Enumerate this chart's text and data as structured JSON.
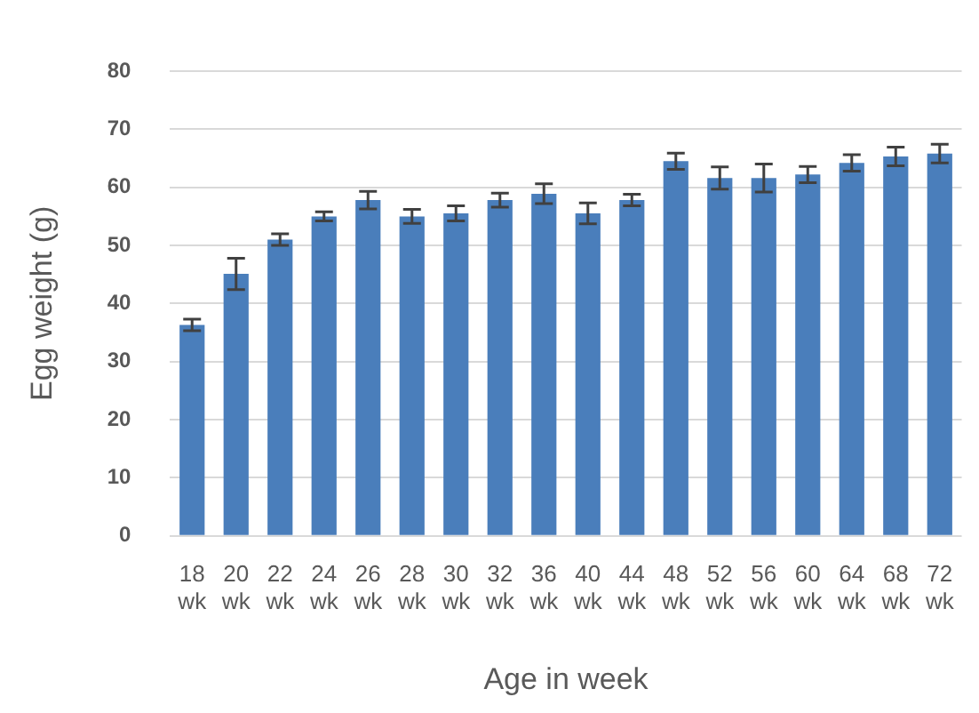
{
  "chart_data": {
    "type": "bar",
    "xlabel": "Age in week",
    "ylabel": "Egg weight (g)",
    "categories": [
      [
        "18",
        "wk"
      ],
      [
        "20",
        "wk"
      ],
      [
        "22",
        "wk"
      ],
      [
        "24",
        "wk"
      ],
      [
        "26",
        "wk"
      ],
      [
        "28",
        "wk"
      ],
      [
        "30",
        "wk"
      ],
      [
        "32",
        "wk"
      ],
      [
        "36",
        "wk"
      ],
      [
        "40",
        "wk"
      ],
      [
        "44",
        "wk"
      ],
      [
        "48",
        "wk"
      ],
      [
        "52",
        "wk"
      ],
      [
        "56",
        "wk"
      ],
      [
        "60",
        "wk"
      ],
      [
        "64",
        "wk"
      ],
      [
        "68",
        "wk"
      ],
      [
        "72",
        "wk"
      ]
    ],
    "values": [
      36.3,
      45.1,
      51,
      55,
      57.8,
      55,
      55.5,
      57.8,
      58.9,
      55.5,
      57.8,
      64.5,
      61.6,
      61.6,
      62.2,
      64.2,
      65.3,
      65.8
    ],
    "errors": [
      1,
      2.7,
      1,
      0.8,
      1.5,
      1.2,
      1.3,
      1.2,
      1.7,
      1.8,
      1,
      1.4,
      1.9,
      2.4,
      1.4,
      1.4,
      1.6,
      1.6
    ],
    "color": "#4a7ebb",
    "ylim": [
      0,
      80
    ],
    "yticks": [
      0,
      10,
      20,
      30,
      40,
      50,
      60,
      70,
      80
    ],
    "grid": "y"
  }
}
